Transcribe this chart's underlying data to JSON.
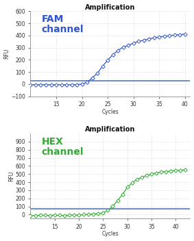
{
  "title": "Amplification",
  "fam_label": "FAM\nchannel",
  "hex_label": "HEX\nchannel",
  "fam_color": "#3355cc",
  "hex_color": "#33aa33",
  "threshold_color": "#5577bb",
  "fam_ylabel": "RFU",
  "hex_ylabel": "RFU",
  "xlabel": "Cycles",
  "fam_ylim": [
    -100,
    600
  ],
  "hex_ylim": [
    -50,
    1000
  ],
  "fam_yticks": [
    -100,
    0,
    100,
    200,
    300,
    400,
    500,
    600
  ],
  "hex_yticks": [
    0,
    100,
    200,
    300,
    400,
    500,
    600,
    700,
    800,
    900
  ],
  "fam_threshold": 30,
  "hex_threshold": 75,
  "fam_xlim": [
    10,
    41
  ],
  "hex_xlim": [
    10,
    43
  ],
  "fam_xticks": [
    15,
    20,
    25,
    30,
    35,
    40
  ],
  "hex_xticks": [
    15,
    20,
    25,
    30,
    35,
    40
  ],
  "fam_cycles": [
    10,
    11,
    12,
    13,
    14,
    15,
    16,
    17,
    18,
    19,
    20,
    21,
    22,
    23,
    24,
    25,
    26,
    27,
    28,
    29,
    30,
    31,
    32,
    33,
    34,
    35,
    36,
    37,
    38,
    39,
    40
  ],
  "fam_values": [
    -5,
    -4,
    -5,
    -4,
    -5,
    -4,
    -5,
    -4,
    -5,
    -4,
    2,
    15,
    52,
    90,
    148,
    198,
    242,
    278,
    305,
    318,
    338,
    352,
    362,
    372,
    382,
    388,
    394,
    398,
    404,
    407,
    412
  ],
  "hex_cycles": [
    10,
    11,
    12,
    13,
    14,
    15,
    16,
    17,
    18,
    19,
    20,
    21,
    22,
    23,
    24,
    25,
    26,
    27,
    28,
    29,
    30,
    31,
    32,
    33,
    34,
    35,
    36,
    37,
    38,
    39,
    40,
    41,
    42
  ],
  "hex_values": [
    -15,
    -10,
    -8,
    -8,
    -10,
    -8,
    -8,
    -10,
    -5,
    -5,
    -5,
    0,
    5,
    8,
    12,
    22,
    52,
    105,
    172,
    248,
    338,
    390,
    435,
    462,
    482,
    502,
    515,
    525,
    532,
    538,
    545,
    548,
    553
  ],
  "bg_color": "#ffffff",
  "plot_bg_color": "#ffffff",
  "grid_color": "#cccccc",
  "spine_color": "#888888",
  "tick_color": "#333333",
  "title_fontsize": 7,
  "label_fontsize": 5.5,
  "channel_fontsize": 10,
  "tick_fontsize": 5.5
}
